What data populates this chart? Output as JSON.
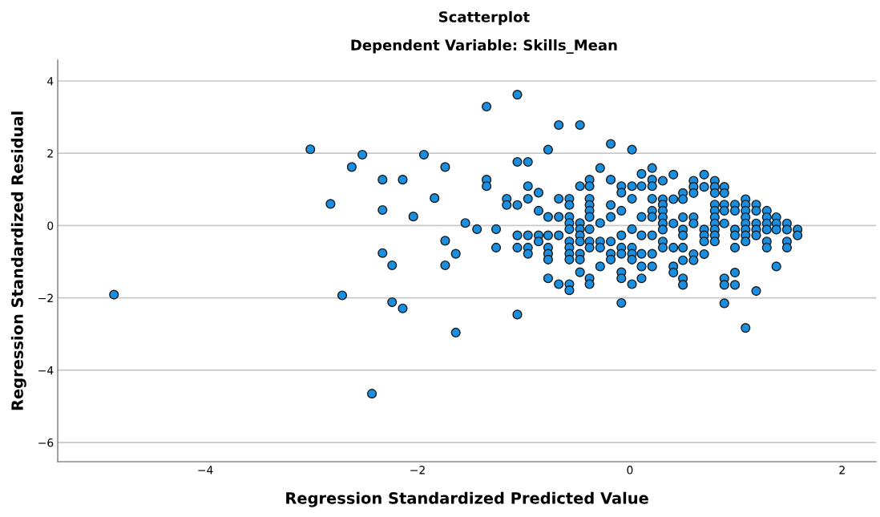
{
  "chart_data": {
    "type": "scatter",
    "title": "Scatterplot",
    "subtitle": "Dependent Variable: Skills_Mean",
    "xlabel": "Regression Standardized Predicted Value",
    "ylabel": "Regression Standardized Residual",
    "xlim": [
      -5.39,
      2.32
    ],
    "ylim": [
      -6.53,
      4.58
    ],
    "xticks": [
      {
        "value": -4,
        "label": "−4"
      },
      {
        "value": -2,
        "label": "−2"
      },
      0,
      2
    ],
    "yticks": [
      {
        "value": -6,
        "label": "−6"
      },
      {
        "value": -4,
        "label": "−4"
      },
      {
        "value": -2,
        "label": "−2"
      },
      0,
      2,
      4
    ],
    "grid": "y",
    "marker": "circle",
    "series": [
      {
        "color": "#1a8fe0",
        "x": [
          -4.86,
          -3.01,
          -2.82,
          -2.71,
          -2.62,
          -2.52,
          -2.33,
          -2.33,
          -2.33,
          -2.24,
          -2.24,
          -2.43,
          -2.14,
          -2.14,
          -2.04,
          -1.94,
          -1.84,
          -1.74,
          -1.74,
          -1.74,
          -1.64,
          -1.64,
          -1.55,
          -1.44,
          -1.35,
          -1.35,
          -1.35,
          -1.26,
          -1.26,
          -1.16,
          -1.16,
          -1.06,
          -1.06,
          -1.06,
          -1.06,
          -1.06,
          -1.06,
          -0.96,
          -0.96,
          -0.96,
          -0.96,
          -0.96,
          -0.96,
          -0.86,
          -0.86,
          -0.86,
          -0.86,
          -0.77,
          -0.77,
          -0.77,
          -0.77,
          -0.77,
          -0.77,
          -0.77,
          -0.67,
          -0.67,
          -0.67,
          -0.67,
          -0.67,
          -0.57,
          -0.57,
          -0.57,
          -0.57,
          -0.57,
          -0.57,
          -0.57,
          -0.57,
          -0.57,
          -0.57,
          -0.57,
          -0.47,
          -0.47,
          -0.47,
          -0.47,
          -0.47,
          -0.47,
          -0.47,
          -0.47,
          -0.47,
          -0.38,
          -0.38,
          -0.38,
          -0.38,
          -0.38,
          -0.38,
          -0.38,
          -0.38,
          -0.38,
          -0.38,
          -0.38,
          -0.28,
          -0.28,
          -0.28,
          -0.28,
          -0.28,
          -0.18,
          -0.18,
          -0.18,
          -0.18,
          -0.18,
          -0.18,
          -0.18,
          -0.08,
          -0.08,
          -0.08,
          -0.08,
          -0.08,
          -0.08,
          -0.08,
          -0.08,
          -0.08,
          0.02,
          0.02,
          0.02,
          0.02,
          0.02,
          0.02,
          0.02,
          0.02,
          0.11,
          0.11,
          0.11,
          0.11,
          0.11,
          0.11,
          0.11,
          0.21,
          0.21,
          0.21,
          0.21,
          0.21,
          0.21,
          0.21,
          0.21,
          0.21,
          0.31,
          0.31,
          0.31,
          0.31,
          0.31,
          0.31,
          0.31,
          0.31,
          0.31,
          0.41,
          0.41,
          0.41,
          0.41,
          0.41,
          0.41,
          0.5,
          0.5,
          0.5,
          0.5,
          0.5,
          0.5,
          0.5,
          0.5,
          0.5,
          0.6,
          0.6,
          0.6,
          0.6,
          0.6,
          0.6,
          0.6,
          0.7,
          0.7,
          0.7,
          0.7,
          0.7,
          0.7,
          0.8,
          0.8,
          0.8,
          0.8,
          0.8,
          0.8,
          0.8,
          0.8,
          0.8,
          0.8,
          0.89,
          0.89,
          0.89,
          0.89,
          0.89,
          0.89,
          0.89,
          0.89,
          0.99,
          0.99,
          0.99,
          0.99,
          0.99,
          0.99,
          0.99,
          1.09,
          1.09,
          1.09,
          1.09,
          1.09,
          1.09,
          1.09,
          1.09,
          1.09,
          1.19,
          1.19,
          1.19,
          1.19,
          1.19,
          1.19,
          1.29,
          1.29,
          1.29,
          1.29,
          1.29,
          1.29,
          1.38,
          1.38,
          1.38,
          1.38,
          1.48,
          1.48,
          1.48,
          1.48,
          1.58,
          1.58
        ],
        "values": [
          -1.91,
          2.11,
          0.6,
          -1.93,
          1.62,
          1.96,
          1.27,
          0.43,
          -0.76,
          -1.1,
          -2.12,
          -4.65,
          1.27,
          -2.29,
          0.25,
          1.96,
          0.76,
          1.62,
          -0.42,
          -1.1,
          -0.78,
          -2.96,
          0.07,
          -0.1,
          3.29,
          1.27,
          1.09,
          -0.1,
          -0.61,
          0.74,
          0.57,
          3.62,
          1.76,
          0.57,
          -0.27,
          -0.61,
          -2.46,
          1.76,
          1.09,
          0.74,
          -0.27,
          -0.61,
          -0.78,
          0.91,
          0.41,
          -0.27,
          -0.44,
          2.1,
          0.24,
          -0.27,
          -0.61,
          -0.78,
          -0.94,
          -1.46,
          2.78,
          0.74,
          0.24,
          -0.27,
          -1.62,
          0.74,
          0.57,
          0.24,
          0.07,
          -0.1,
          -0.44,
          -0.61,
          -0.78,
          -0.94,
          -1.62,
          -1.79,
          2.78,
          1.09,
          0.07,
          -0.1,
          -0.27,
          -0.44,
          -0.78,
          -0.94,
          -1.29,
          1.27,
          1.09,
          0.74,
          0.57,
          0.41,
          0.24,
          -0.1,
          -0.44,
          -0.61,
          -1.46,
          -1.62,
          1.59,
          0.07,
          -0.44,
          -0.61,
          -1.13,
          2.26,
          1.27,
          0.57,
          0.24,
          -0.44,
          -0.78,
          -0.94,
          1.09,
          0.91,
          0.41,
          -0.27,
          -0.61,
          -0.78,
          -1.29,
          -1.46,
          -2.14,
          2.1,
          1.09,
          0.74,
          -0.1,
          -0.61,
          -0.78,
          -0.94,
          -1.62,
          1.43,
          1.09,
          0.24,
          -0.27,
          -0.78,
          -1.13,
          -1.46,
          1.59,
          1.27,
          1.09,
          0.74,
          0.41,
          0.24,
          -0.27,
          -0.78,
          -1.13,
          1.24,
          0.73,
          0.58,
          0.41,
          0.23,
          0.06,
          -0.11,
          -0.44,
          -0.61,
          1.41,
          0.73,
          0.06,
          -0.61,
          -1.13,
          -1.3,
          0.9,
          0.73,
          0.23,
          -0.11,
          -0.27,
          -0.61,
          -0.96,
          -1.46,
          -1.64,
          1.24,
          1.07,
          0.9,
          0.23,
          0.06,
          -0.79,
          -0.96,
          1.41,
          1.07,
          -0.11,
          -0.27,
          -0.44,
          -0.79,
          1.24,
          1.07,
          0.9,
          0.58,
          0.41,
          0.23,
          0.06,
          -0.11,
          -0.27,
          -0.44,
          1.07,
          0.9,
          0.58,
          0.41,
          0.06,
          -1.46,
          -1.64,
          -2.15,
          0.58,
          0.41,
          -0.11,
          -0.27,
          -0.61,
          -1.3,
          -1.64,
          0.73,
          0.58,
          0.41,
          0.23,
          0.06,
          -0.11,
          -0.27,
          -0.44,
          -2.83,
          0.58,
          0.41,
          0.06,
          -0.11,
          -0.27,
          -1.81,
          0.41,
          0.23,
          0.06,
          -0.11,
          -0.44,
          -0.61,
          0.23,
          0.06,
          -0.11,
          -1.13,
          0.06,
          -0.11,
          -0.44,
          -0.61,
          -0.11,
          -0.27
        ]
      }
    ]
  }
}
